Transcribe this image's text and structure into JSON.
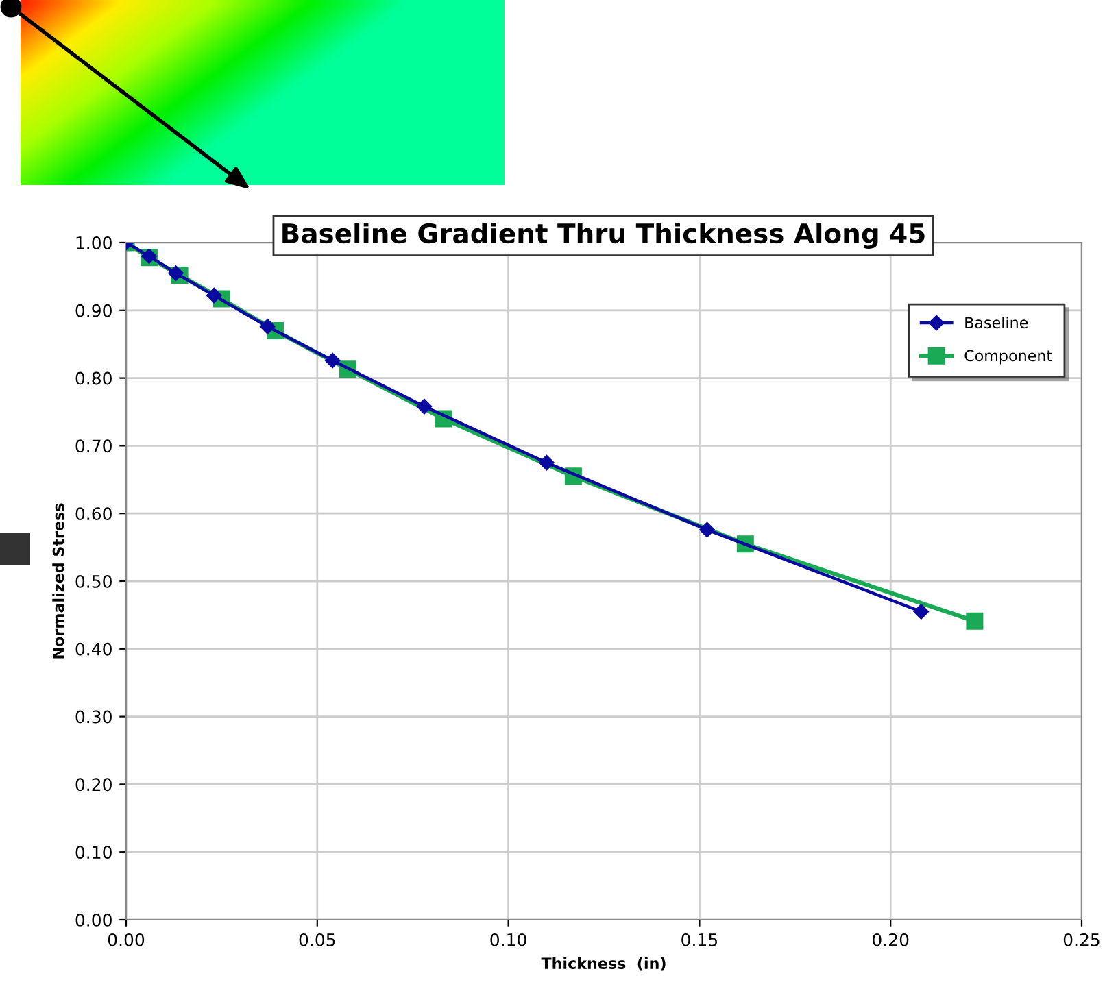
{
  "chart_data": {
    "type": "line",
    "title": "Baseline Gradient Thru Thickness Along 45",
    "xlabel": "Thickness  (in)",
    "ylabel": "Normalized Stress",
    "series": [
      {
        "name": "Baseline",
        "color": "#0a0aa0",
        "marker": "diamond",
        "x": [
          0,
          0.006,
          0.013,
          0.023,
          0.037,
          0.054,
          0.078,
          0.11,
          0.152,
          0.208
        ],
        "values": [
          1.0,
          0.98,
          0.955,
          0.922,
          0.876,
          0.826,
          0.758,
          0.675,
          0.576,
          0.455
        ]
      },
      {
        "name": "Component",
        "color": "#1aaa55",
        "marker": "square",
        "x": [
          0,
          0.006,
          0.014,
          0.025,
          0.039,
          0.058,
          0.083,
          0.117,
          0.162,
          0.222
        ],
        "values": [
          1.0,
          0.978,
          0.952,
          0.917,
          0.87,
          0.813,
          0.74,
          0.655,
          0.555,
          0.441
        ]
      }
    ],
    "xlim": [
      0,
      0.25
    ],
    "xticks": [
      {
        "value": 0,
        "label": "0.00"
      },
      {
        "value": 0.05,
        "label": "0.05"
      },
      {
        "value": 0.1,
        "label": "0.10"
      },
      {
        "value": 0.15,
        "label": "0.15"
      },
      {
        "value": 0.2,
        "label": "0.20"
      },
      {
        "value": 0.25,
        "label": "0.25"
      }
    ],
    "ylim": [
      0,
      1.0
    ],
    "yticks": [
      {
        "value": 0,
        "label": "0.00"
      },
      {
        "value": 0.1,
        "label": "0.10"
      },
      {
        "value": 0.2,
        "label": "0.20"
      },
      {
        "value": 0.3,
        "label": "0.30"
      },
      {
        "value": 0.4,
        "label": "0.40"
      },
      {
        "value": 0.5,
        "label": "0.50"
      },
      {
        "value": 0.6,
        "label": "0.60"
      },
      {
        "value": 0.7,
        "label": "0.70"
      },
      {
        "value": 0.8,
        "label": "0.80"
      },
      {
        "value": 0.9,
        "label": "0.90"
      },
      {
        "value": 1.0,
        "label": "1.00"
      }
    ],
    "grid": true,
    "legend": "top right",
    "line_style": "solid"
  }
}
